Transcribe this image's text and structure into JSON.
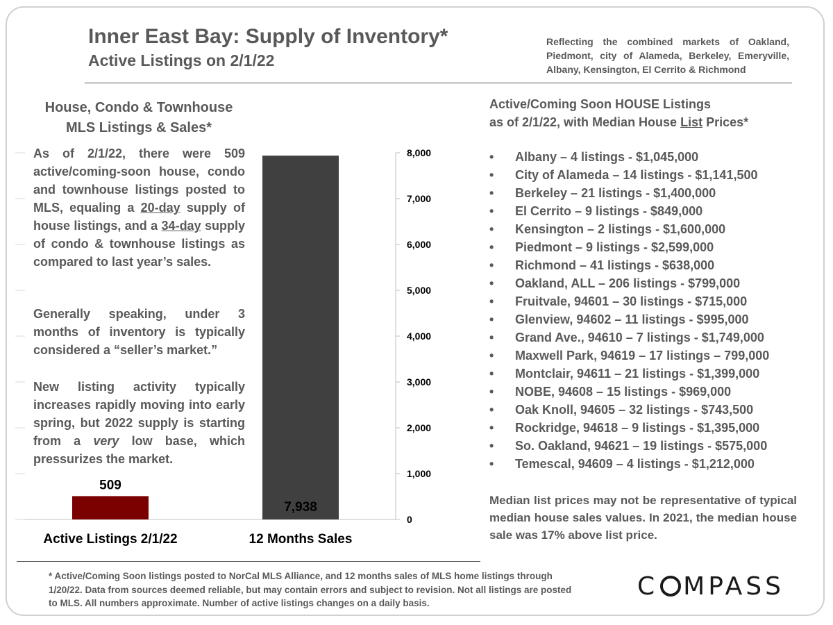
{
  "header": {
    "title": "Inner East Bay: Supply of Inventory*",
    "subtitle": "Active Listings on 2/1/22",
    "reflecting": "Reflecting the combined markets of Oakland, Piedmont, city of Alameda, Berkeley, Emeryville, Albany, Kensington, El Cerrito & Richmond"
  },
  "left_panel": {
    "heading": "House, Condo & Townhouse\nMLS Listings & Sales*",
    "p1": {
      "a": "As of 2/1/22, there were 509 active/coming-soon house, condo and townhouse listings posted to MLS, equaling a ",
      "u1": "20-day",
      "b": " supply of house listings,   and a ",
      "u2": "34-day",
      "c": " supply of condo & townhouse listings as compared to last year’s sales."
    },
    "p2": "Generally speaking, under 3 months of inventory is typically considered a “seller’s market.”",
    "p3": {
      "a": "New listing activity typically increases rapidly moving into early spring, but 2022 supply is starting from a ",
      "em": "very",
      "b": " low base, which pressurizes the market."
    }
  },
  "chart_data": {
    "type": "bar",
    "categories": [
      "Active Listings 2/1/22",
      "12 Months Sales"
    ],
    "values": [
      509,
      7938
    ],
    "value_labels": [
      "509",
      "7,938"
    ],
    "colors": [
      "#7b0000",
      "#404040"
    ],
    "ylim": [
      0,
      8000
    ],
    "yticks": [
      0,
      1000,
      2000,
      3000,
      4000,
      5000,
      6000,
      7000,
      8000
    ],
    "ytick_labels": [
      "0",
      "1,000",
      "2,000",
      "3,000",
      "4,000",
      "5,000",
      "6,000",
      "7,000",
      "8,000"
    ],
    "y_axis_side": "right",
    "grid": false
  },
  "right_panel": {
    "heading_line1": "Active/Coming Soon HOUSE Listings",
    "heading_line2a": "as of 2/1/22, with Median House ",
    "heading_line2u": "List",
    "heading_line2b": " Prices*",
    "bullet": "•",
    "listings": [
      "Albany – 4 listings - $1,045,000",
      "City of Alameda – 14 listings - $1,141,500",
      "Berkeley – 21 listings - $1,400,000",
      "El Cerrito – 9 listings - $849,000",
      "Kensington – 2 listings - $1,600,000",
      "Piedmont – 9 listings - $2,599,000",
      "Richmond – 41 listings - $638,000",
      "Oakland, ALL – 206 listings - $799,000",
      "Fruitvale, 94601 – 30 listings - $715,000",
      "Glenview, 94602 – 11 listings - $995,000",
      "Grand Ave., 94610 – 7 listings - $1,749,000",
      "Maxwell Park, 94619 – 17 listings – 799,000",
      "Montclair, 94611 – 21 listings - $1,399,000",
      "NOBE, 94608 – 15 listings - $969,000",
      "Oak Knoll, 94605 – 32 listings - $743,500",
      "Rockridge, 94618 – 9 listings - $1,395,000",
      "So. Oakland, 94621 – 19 listings - $575,000",
      "Temescal, 94609 – 4 listings - $1,212,000"
    ],
    "note": "Median list prices may not be representative of typical median house sales values. In 2021, the median house sale was 17% above list price."
  },
  "footer": {
    "footnote": "* Active/Coming Soon listings posted to NorCal MLS Alliance, and 12 months sales of MLS home listings through 1/20/22.  Data from sources deemed reliable, but may contain errors and subject to revision.  Not all listings are posted to MLS. All numbers approximate. Number of active listings changes on a daily basis.",
    "logo_left": "C",
    "logo_right": "MPASS"
  }
}
